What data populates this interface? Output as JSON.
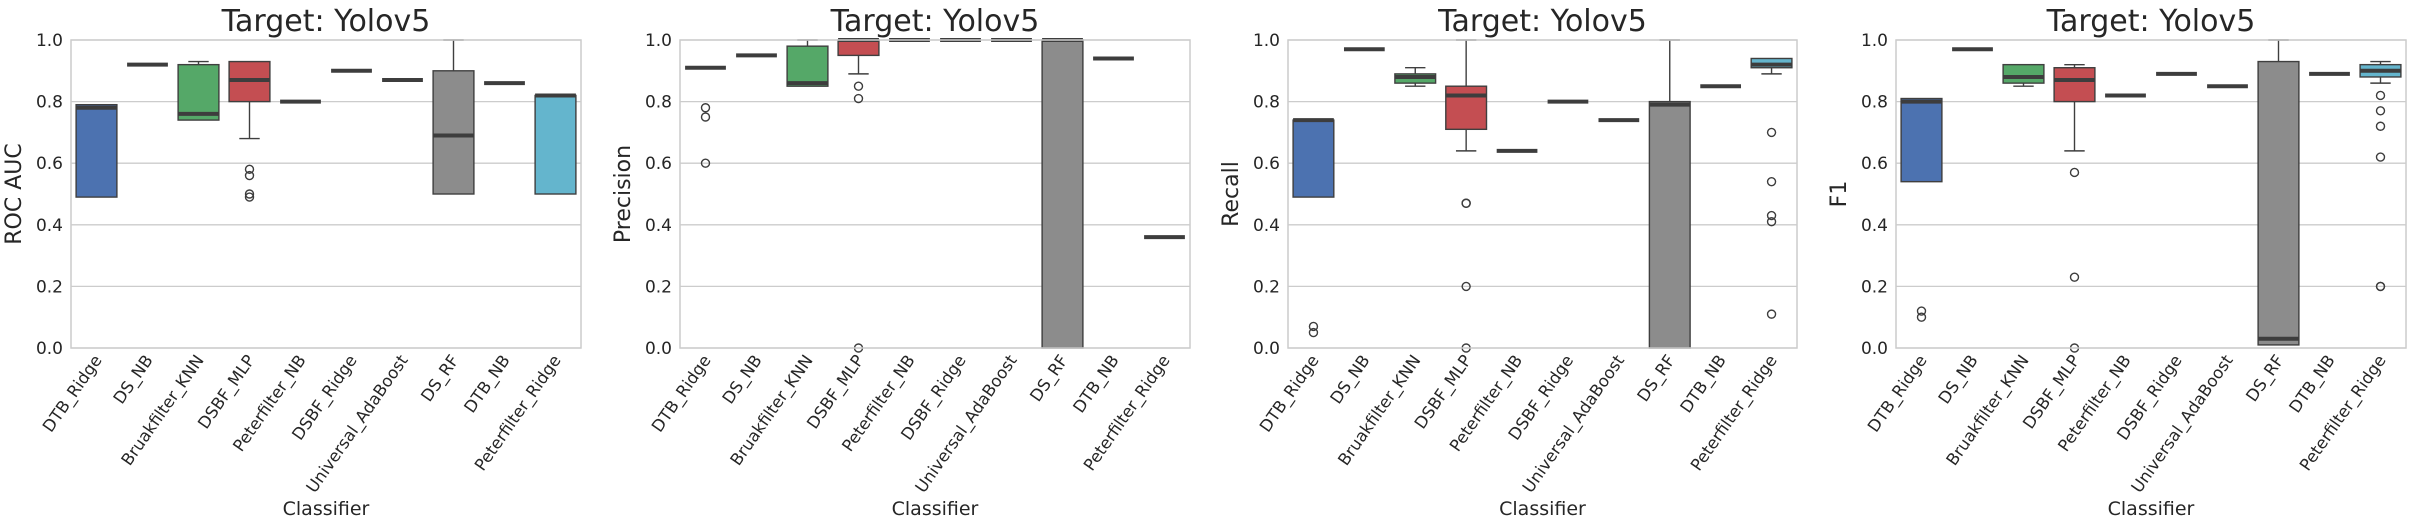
{
  "chart_data": [
    {
      "type": "box",
      "title": "Target: Yolov5",
      "xlabel": "Classifier",
      "ylabel": "ROC AUC",
      "ylim": [
        0,
        1.0
      ],
      "yticks": [
        "0.0",
        "0.2",
        "0.4",
        "0.6",
        "0.8",
        "1.0"
      ],
      "grid": true,
      "categories": [
        "DTB_Ridge",
        "DS_NB",
        "Bruakfilter_KNN",
        "DSBF_MLP",
        "Peterfilter_NB",
        "DSBF_Ridge",
        "Universal_AdaBoost",
        "DS_RF",
        "DTB_NB",
        "Peterfilter_Ridge"
      ],
      "boxes": [
        {
          "q1": 0.49,
          "median": 0.78,
          "q3": 0.79,
          "whislo": 0.49,
          "whishi": 0.79,
          "fliers": [],
          "color": "#4c72b0"
        },
        {
          "q1": 0.92,
          "median": 0.92,
          "q3": 0.92,
          "whislo": 0.92,
          "whishi": 0.92,
          "fliers": [],
          "color": "#dd8452"
        },
        {
          "q1": 0.74,
          "median": 0.76,
          "q3": 0.92,
          "whislo": 0.74,
          "whishi": 0.93,
          "fliers": [],
          "color": "#55a868"
        },
        {
          "q1": 0.8,
          "median": 0.87,
          "q3": 0.93,
          "whislo": 0.68,
          "whishi": 0.93,
          "fliers": [
            0.58,
            0.56,
            0.5,
            0.49
          ],
          "color": "#c44e52"
        },
        {
          "q1": 0.8,
          "median": 0.8,
          "q3": 0.8,
          "whislo": 0.8,
          "whishi": 0.8,
          "fliers": [],
          "color": "#8172b3"
        },
        {
          "q1": 0.9,
          "median": 0.9,
          "q3": 0.9,
          "whislo": 0.9,
          "whishi": 0.9,
          "fliers": [],
          "color": "#937860"
        },
        {
          "q1": 0.87,
          "median": 0.87,
          "q3": 0.87,
          "whislo": 0.87,
          "whishi": 0.87,
          "fliers": [],
          "color": "#da8bc3"
        },
        {
          "q1": 0.5,
          "median": 0.69,
          "q3": 0.9,
          "whislo": 0.5,
          "whishi": 1.0,
          "fliers": [],
          "color": "#8c8c8c"
        },
        {
          "q1": 0.86,
          "median": 0.86,
          "q3": 0.86,
          "whislo": 0.86,
          "whishi": 0.86,
          "fliers": [],
          "color": "#ccb974"
        },
        {
          "q1": 0.5,
          "median": 0.82,
          "q3": 0.82,
          "whislo": 0.5,
          "whishi": 0.82,
          "fliers": [],
          "color": "#64b5cd"
        }
      ]
    },
    {
      "type": "box",
      "title": "Target: Yolov5",
      "xlabel": "Classifier",
      "ylabel": "Precision",
      "ylim": [
        0,
        1.0
      ],
      "yticks": [
        "0.0",
        "0.2",
        "0.4",
        "0.6",
        "0.8",
        "1.0"
      ],
      "grid": true,
      "categories": [
        "DTB_Ridge",
        "DS_NB",
        "Bruakfilter_KNN",
        "DSBF_MLP",
        "Peterfilter_NB",
        "DSBF_Ridge",
        "Universal_AdaBoost",
        "DS_RF",
        "DTB_NB",
        "Peterfilter_Ridge"
      ],
      "boxes": [
        {
          "q1": 0.91,
          "median": 0.91,
          "q3": 0.91,
          "whislo": 0.91,
          "whishi": 0.91,
          "fliers": [
            0.78,
            0.75,
            0.6
          ],
          "color": "#4c72b0"
        },
        {
          "q1": 0.95,
          "median": 0.95,
          "q3": 0.95,
          "whislo": 0.95,
          "whishi": 0.95,
          "fliers": [],
          "color": "#dd8452"
        },
        {
          "q1": 0.85,
          "median": 0.86,
          "q3": 0.98,
          "whislo": 0.85,
          "whishi": 1.0,
          "fliers": [],
          "color": "#55a868"
        },
        {
          "q1": 0.95,
          "median": 1.0,
          "q3": 1.0,
          "whislo": 0.89,
          "whishi": 1.0,
          "fliers": [
            0.85,
            0.81,
            0.0
          ],
          "color": "#c44e52"
        },
        {
          "q1": 1.0,
          "median": 1.0,
          "q3": 1.0,
          "whislo": 1.0,
          "whishi": 1.0,
          "fliers": [],
          "color": "#8172b3"
        },
        {
          "q1": 1.0,
          "median": 1.0,
          "q3": 1.0,
          "whislo": 1.0,
          "whishi": 1.0,
          "fliers": [],
          "color": "#937860"
        },
        {
          "q1": 1.0,
          "median": 1.0,
          "q3": 1.0,
          "whislo": 1.0,
          "whishi": 1.0,
          "fliers": [],
          "color": "#da8bc3"
        },
        {
          "q1": 0.0,
          "median": 1.0,
          "q3": 1.0,
          "whislo": 0.0,
          "whishi": 1.0,
          "fliers": [],
          "color": "#8c8c8c"
        },
        {
          "q1": 0.94,
          "median": 0.94,
          "q3": 0.94,
          "whislo": 0.94,
          "whishi": 0.94,
          "fliers": [],
          "color": "#ccb974"
        },
        {
          "q1": 0.36,
          "median": 0.36,
          "q3": 0.36,
          "whislo": 0.36,
          "whishi": 0.36,
          "fliers": [],
          "color": "#64b5cd"
        }
      ]
    },
    {
      "type": "box",
      "title": "Target: Yolov5",
      "xlabel": "Classifier",
      "ylabel": "Recall",
      "ylim": [
        0,
        1.0
      ],
      "yticks": [
        "0.0",
        "0.2",
        "0.4",
        "0.6",
        "0.8",
        "1.0"
      ],
      "grid": true,
      "categories": [
        "DTB_Ridge",
        "DS_NB",
        "Bruakfilter_KNN",
        "DSBF_MLP",
        "Peterfilter_NB",
        "DSBF_Ridge",
        "Universal_AdaBoost",
        "DS_RF",
        "DTB_NB",
        "Peterfilter_Ridge"
      ],
      "boxes": [
        {
          "q1": 0.49,
          "median": 0.74,
          "q3": 0.74,
          "whislo": 0.49,
          "whishi": 0.74,
          "fliers": [
            0.07,
            0.05
          ],
          "color": "#4c72b0"
        },
        {
          "q1": 0.97,
          "median": 0.97,
          "q3": 0.97,
          "whislo": 0.97,
          "whishi": 0.97,
          "fliers": [],
          "color": "#dd8452"
        },
        {
          "q1": 0.86,
          "median": 0.88,
          "q3": 0.89,
          "whislo": 0.85,
          "whishi": 0.91,
          "fliers": [],
          "color": "#55a868"
        },
        {
          "q1": 0.71,
          "median": 0.82,
          "q3": 0.85,
          "whislo": 0.64,
          "whishi": 1.0,
          "fliers": [
            0.47,
            0.47,
            0.2,
            0.0
          ],
          "color": "#c44e52"
        },
        {
          "q1": 0.64,
          "median": 0.64,
          "q3": 0.64,
          "whislo": 0.64,
          "whishi": 0.64,
          "fliers": [],
          "color": "#8172b3"
        },
        {
          "q1": 0.8,
          "median": 0.8,
          "q3": 0.8,
          "whislo": 0.8,
          "whishi": 0.8,
          "fliers": [],
          "color": "#937860"
        },
        {
          "q1": 0.74,
          "median": 0.74,
          "q3": 0.74,
          "whislo": 0.74,
          "whishi": 0.74,
          "fliers": [],
          "color": "#da8bc3"
        },
        {
          "q1": 0.0,
          "median": 0.79,
          "q3": 0.8,
          "whislo": 0.0,
          "whishi": 1.0,
          "fliers": [],
          "color": "#8c8c8c"
        },
        {
          "q1": 0.85,
          "median": 0.85,
          "q3": 0.85,
          "whislo": 0.85,
          "whishi": 0.85,
          "fliers": [],
          "color": "#ccb974"
        },
        {
          "q1": 0.91,
          "median": 0.92,
          "q3": 0.94,
          "whislo": 0.89,
          "whishi": 0.94,
          "fliers": [
            0.7,
            0.54,
            0.43,
            0.41,
            0.11
          ],
          "color": "#64b5cd"
        }
      ]
    },
    {
      "type": "box",
      "title": "Target: Yolov5",
      "xlabel": "Classifier",
      "ylabel": "F1",
      "ylim": [
        0,
        1.0
      ],
      "yticks": [
        "0.0",
        "0.2",
        "0.4",
        "0.6",
        "0.8",
        "1.0"
      ],
      "grid": true,
      "categories": [
        "DTB_Ridge",
        "DS_NB",
        "Bruakfilter_KNN",
        "DSBF_MLP",
        "Peterfilter_NB",
        "DSBF_Ridge",
        "Universal_AdaBoost",
        "DS_RF",
        "DTB_NB",
        "Peterfilter_Ridge"
      ],
      "boxes": [
        {
          "q1": 0.54,
          "median": 0.8,
          "q3": 0.81,
          "whislo": 0.54,
          "whishi": 0.81,
          "fliers": [
            0.12,
            0.1
          ],
          "color": "#4c72b0"
        },
        {
          "q1": 0.97,
          "median": 0.97,
          "q3": 0.97,
          "whislo": 0.97,
          "whishi": 0.97,
          "fliers": [],
          "color": "#dd8452"
        },
        {
          "q1": 0.86,
          "median": 0.88,
          "q3": 0.92,
          "whislo": 0.85,
          "whishi": 0.92,
          "fliers": [],
          "color": "#55a868"
        },
        {
          "q1": 0.8,
          "median": 0.87,
          "q3": 0.91,
          "whislo": 0.64,
          "whishi": 0.92,
          "fliers": [
            0.57,
            0.23,
            0.0
          ],
          "color": "#c44e52"
        },
        {
          "q1": 0.82,
          "median": 0.82,
          "q3": 0.82,
          "whislo": 0.82,
          "whishi": 0.82,
          "fliers": [],
          "color": "#8172b3"
        },
        {
          "q1": 0.89,
          "median": 0.89,
          "q3": 0.89,
          "whislo": 0.89,
          "whishi": 0.89,
          "fliers": [],
          "color": "#937860"
        },
        {
          "q1": 0.85,
          "median": 0.85,
          "q3": 0.85,
          "whislo": 0.85,
          "whishi": 0.85,
          "fliers": [],
          "color": "#da8bc3"
        },
        {
          "q1": 0.01,
          "median": 0.03,
          "q3": 0.93,
          "whislo": 0.01,
          "whishi": 1.0,
          "fliers": [],
          "color": "#8c8c8c"
        },
        {
          "q1": 0.89,
          "median": 0.89,
          "q3": 0.89,
          "whislo": 0.89,
          "whishi": 0.89,
          "fliers": [],
          "color": "#ccb974"
        },
        {
          "q1": 0.88,
          "median": 0.9,
          "q3": 0.92,
          "whislo": 0.86,
          "whishi": 0.93,
          "fliers": [
            0.82,
            0.77,
            0.72,
            0.62,
            0.2,
            0.2
          ],
          "color": "#64b5cd"
        }
      ]
    }
  ]
}
